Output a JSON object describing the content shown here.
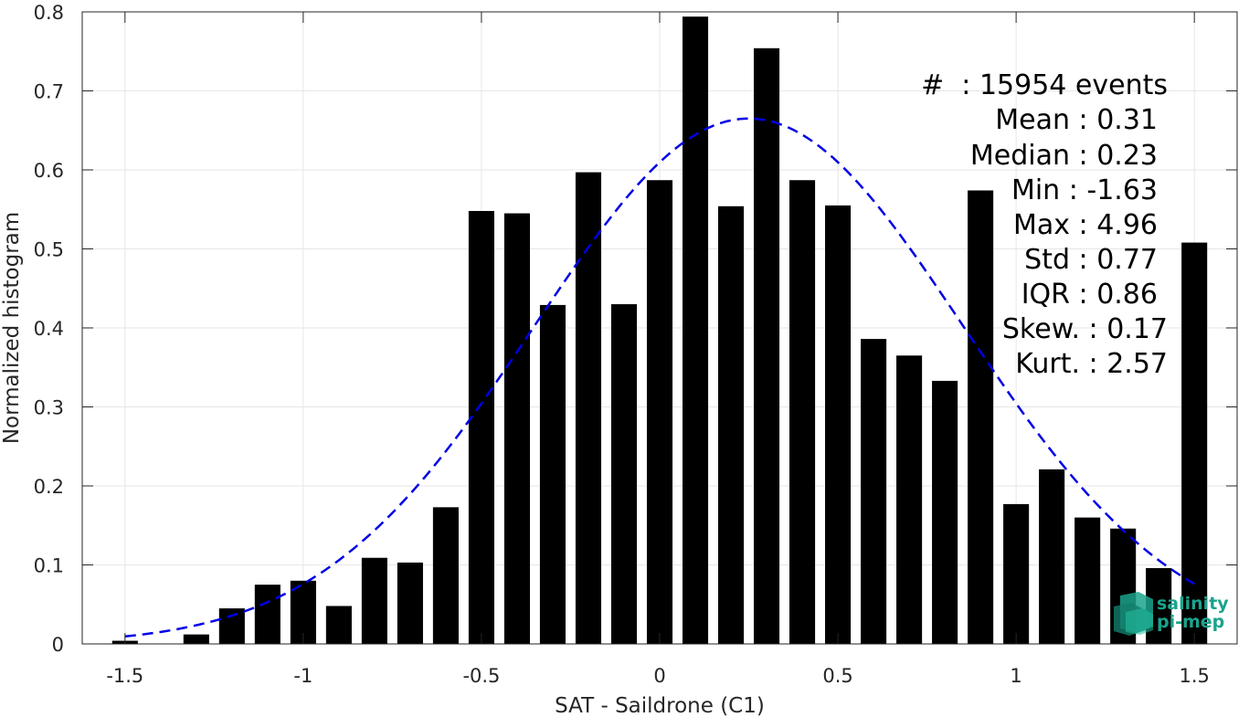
{
  "chart_data": {
    "type": "bar",
    "xlabel": "SAT - Saildrone (C1)",
    "ylabel": "Normalized histogram",
    "xlim": [
      -1.62,
      1.62
    ],
    "ylim": [
      0,
      0.8
    ],
    "xticks": [
      -1.5,
      -1,
      -0.5,
      0,
      0.5,
      1,
      1.5
    ],
    "xtick_labels": [
      "-1.5",
      "-1",
      "-0.5",
      "0",
      "0.5",
      "1",
      "1.5"
    ],
    "yticks": [
      0,
      0.1,
      0.2,
      0.3,
      0.4,
      0.5,
      0.6,
      0.7,
      0.8
    ],
    "ytick_labels": [
      "0",
      "0.1",
      "0.2",
      "0.3",
      "0.4",
      "0.5",
      "0.6",
      "0.7",
      "0.8"
    ],
    "grid": true,
    "bar_color": "#000000",
    "bins": [
      -1.5,
      -1.4,
      -1.3,
      -1.2,
      -1.1,
      -1.0,
      -0.9,
      -0.8,
      -0.7,
      -0.6,
      -0.5,
      -0.4,
      -0.3,
      -0.2,
      -0.1,
      0.0,
      0.1,
      0.2,
      0.3,
      0.4,
      0.5,
      0.6,
      0.7,
      0.8,
      0.9,
      1.0,
      1.1,
      1.2,
      1.3,
      1.4,
      1.5
    ],
    "values": [
      0.004,
      0.0,
      0.012,
      0.045,
      0.075,
      0.08,
      0.048,
      0.109,
      0.103,
      0.173,
      0.548,
      0.545,
      0.429,
      0.597,
      0.43,
      0.587,
      0.794,
      0.554,
      0.754,
      0.587,
      0.555,
      0.386,
      0.365,
      0.333,
      0.574,
      0.177,
      0.221,
      0.16,
      0.146,
      0.096,
      0.508
    ],
    "fit": {
      "type": "gaussian",
      "mean": 0.25,
      "peak": 0.665,
      "sigma": 0.6,
      "color": "#0000e6",
      "style": "dashed",
      "x_range": [
        -1.5,
        1.5
      ]
    }
  },
  "stats": [
    "#  : 15954 events",
    "Mean : 0.31",
    "Median : 0.23",
    "Min : -1.63",
    "Max : 4.96",
    "Std : 0.77",
    "IQR : 0.86",
    "Skew. : 0.17",
    "Kurt. : 2.57"
  ],
  "logo": {
    "line1": "salinity",
    "line2": "pi-mep",
    "color": "#1aa38c",
    "icon": "cube-logo-icon"
  }
}
